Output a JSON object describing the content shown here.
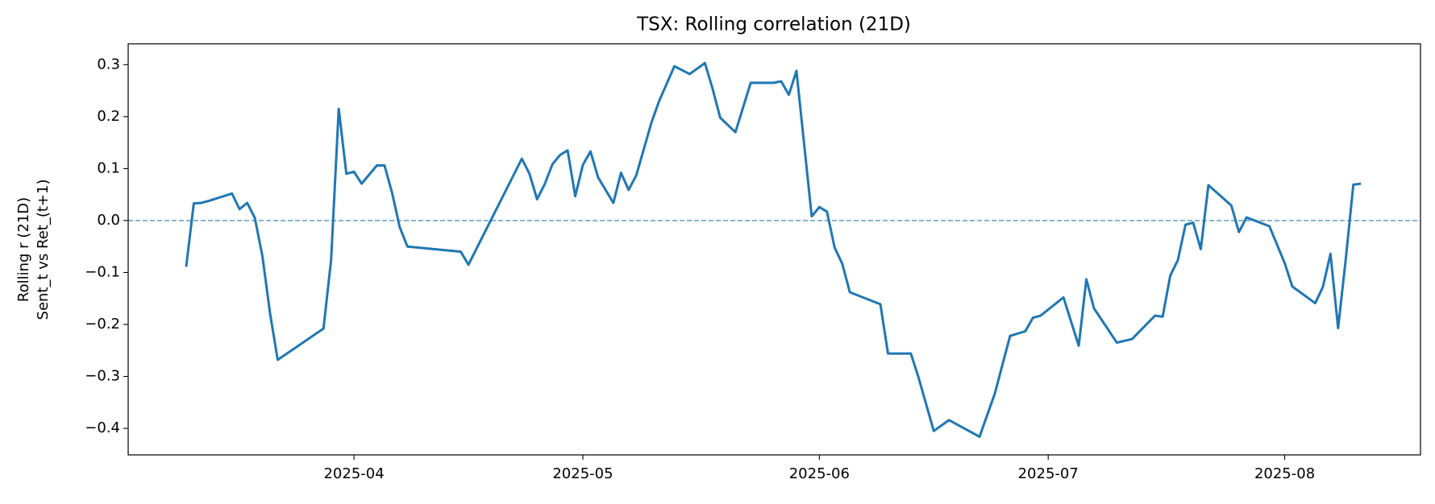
{
  "chart_data": {
    "type": "line",
    "title": "TSX: Rolling correlation (21D)",
    "y_label": [
      "Rolling r (21D)",
      "Sent_t vs Ret_(t+1)"
    ],
    "x": [
      20157,
      20158,
      20159,
      20160,
      20163,
      20164,
      20165,
      20166,
      20167,
      20168,
      20169,
      20175,
      20176,
      20177,
      20178,
      20179,
      20180,
      20182,
      20183,
      20184,
      20185,
      20186,
      20193,
      20194,
      20201,
      20202,
      20203,
      20204,
      20205,
      20206,
      20207,
      20208,
      20209,
      20210,
      20211,
      20213,
      20214,
      20215,
      20216,
      20218,
      20219,
      20221,
      20223,
      20225,
      20226,
      20227,
      20229,
      20231,
      20234,
      20235,
      20236,
      20237,
      20239,
      20240,
      20241,
      20242,
      20243,
      20244,
      20248,
      20249,
      20252,
      20253,
      20255,
      20257,
      20261,
      20263,
      20265,
      20267,
      20268,
      20269,
      20272,
      20274,
      20275,
      20276,
      20279,
      20281,
      20284,
      20285,
      20286,
      20287,
      20288,
      20289,
      20290,
      20291,
      20294,
      20295,
      20296,
      20299,
      20301,
      20302,
      20305,
      20306,
      20307,
      20308,
      20309,
      20310,
      20311
    ],
    "series": [
      {
        "color": "#1f77b4",
        "values": [
          -0.089,
          0.033,
          0.034,
          0.038,
          0.052,
          0.022,
          0.034,
          0.005,
          -0.069,
          -0.179,
          -0.268,
          -0.208,
          -0.076,
          0.215,
          0.09,
          0.094,
          0.071,
          0.106,
          0.106,
          0.053,
          -0.013,
          -0.05,
          -0.06,
          -0.085,
          0.119,
          0.09,
          0.041,
          0.07,
          0.108,
          0.126,
          0.135,
          0.047,
          0.107,
          0.133,
          0.083,
          0.034,
          0.092,
          0.059,
          0.087,
          0.189,
          0.23,
          0.297,
          0.282,
          0.303,
          0.254,
          0.198,
          0.17,
          0.265,
          0.265,
          0.268,
          0.242,
          0.288,
          0.008,
          0.026,
          0.017,
          -0.052,
          -0.083,
          -0.138,
          -0.161,
          -0.256,
          -0.256,
          -0.302,
          -0.405,
          -0.384,
          -0.416,
          -0.333,
          -0.222,
          -0.213,
          -0.187,
          -0.183,
          -0.148,
          -0.241,
          -0.113,
          -0.169,
          -0.235,
          -0.228,
          -0.183,
          -0.185,
          -0.106,
          -0.076,
          -0.008,
          -0.004,
          -0.055,
          0.068,
          0.029,
          -0.022,
          0.006,
          -0.011,
          -0.082,
          -0.127,
          -0.159,
          -0.128,
          -0.064,
          -0.207,
          -0.075,
          0.069,
          0.071
        ]
      }
    ],
    "hline": {
      "value": 0,
      "color": "#7fb0d0"
    },
    "xlim": [
      20149.4,
      20318.8
    ],
    "xticks": [
      {
        "value": 20179,
        "label": "2025-04"
      },
      {
        "value": 20209,
        "label": "2025-05"
      },
      {
        "value": 20240,
        "label": "2025-06"
      },
      {
        "value": 20270,
        "label": "2025-07"
      },
      {
        "value": 20301,
        "label": "2025-08"
      }
    ],
    "ylim": [
      -0.451,
      0.34
    ],
    "yticks": [
      {
        "value": -0.4,
        "label": "−0.4"
      },
      {
        "value": -0.3,
        "label": "−0.3"
      },
      {
        "value": -0.2,
        "label": "−0.2"
      },
      {
        "value": -0.1,
        "label": "−0.1"
      },
      {
        "value": 0,
        "label": "0.0"
      },
      0.1,
      0.2,
      0.3
    ],
    "grid": false
  }
}
